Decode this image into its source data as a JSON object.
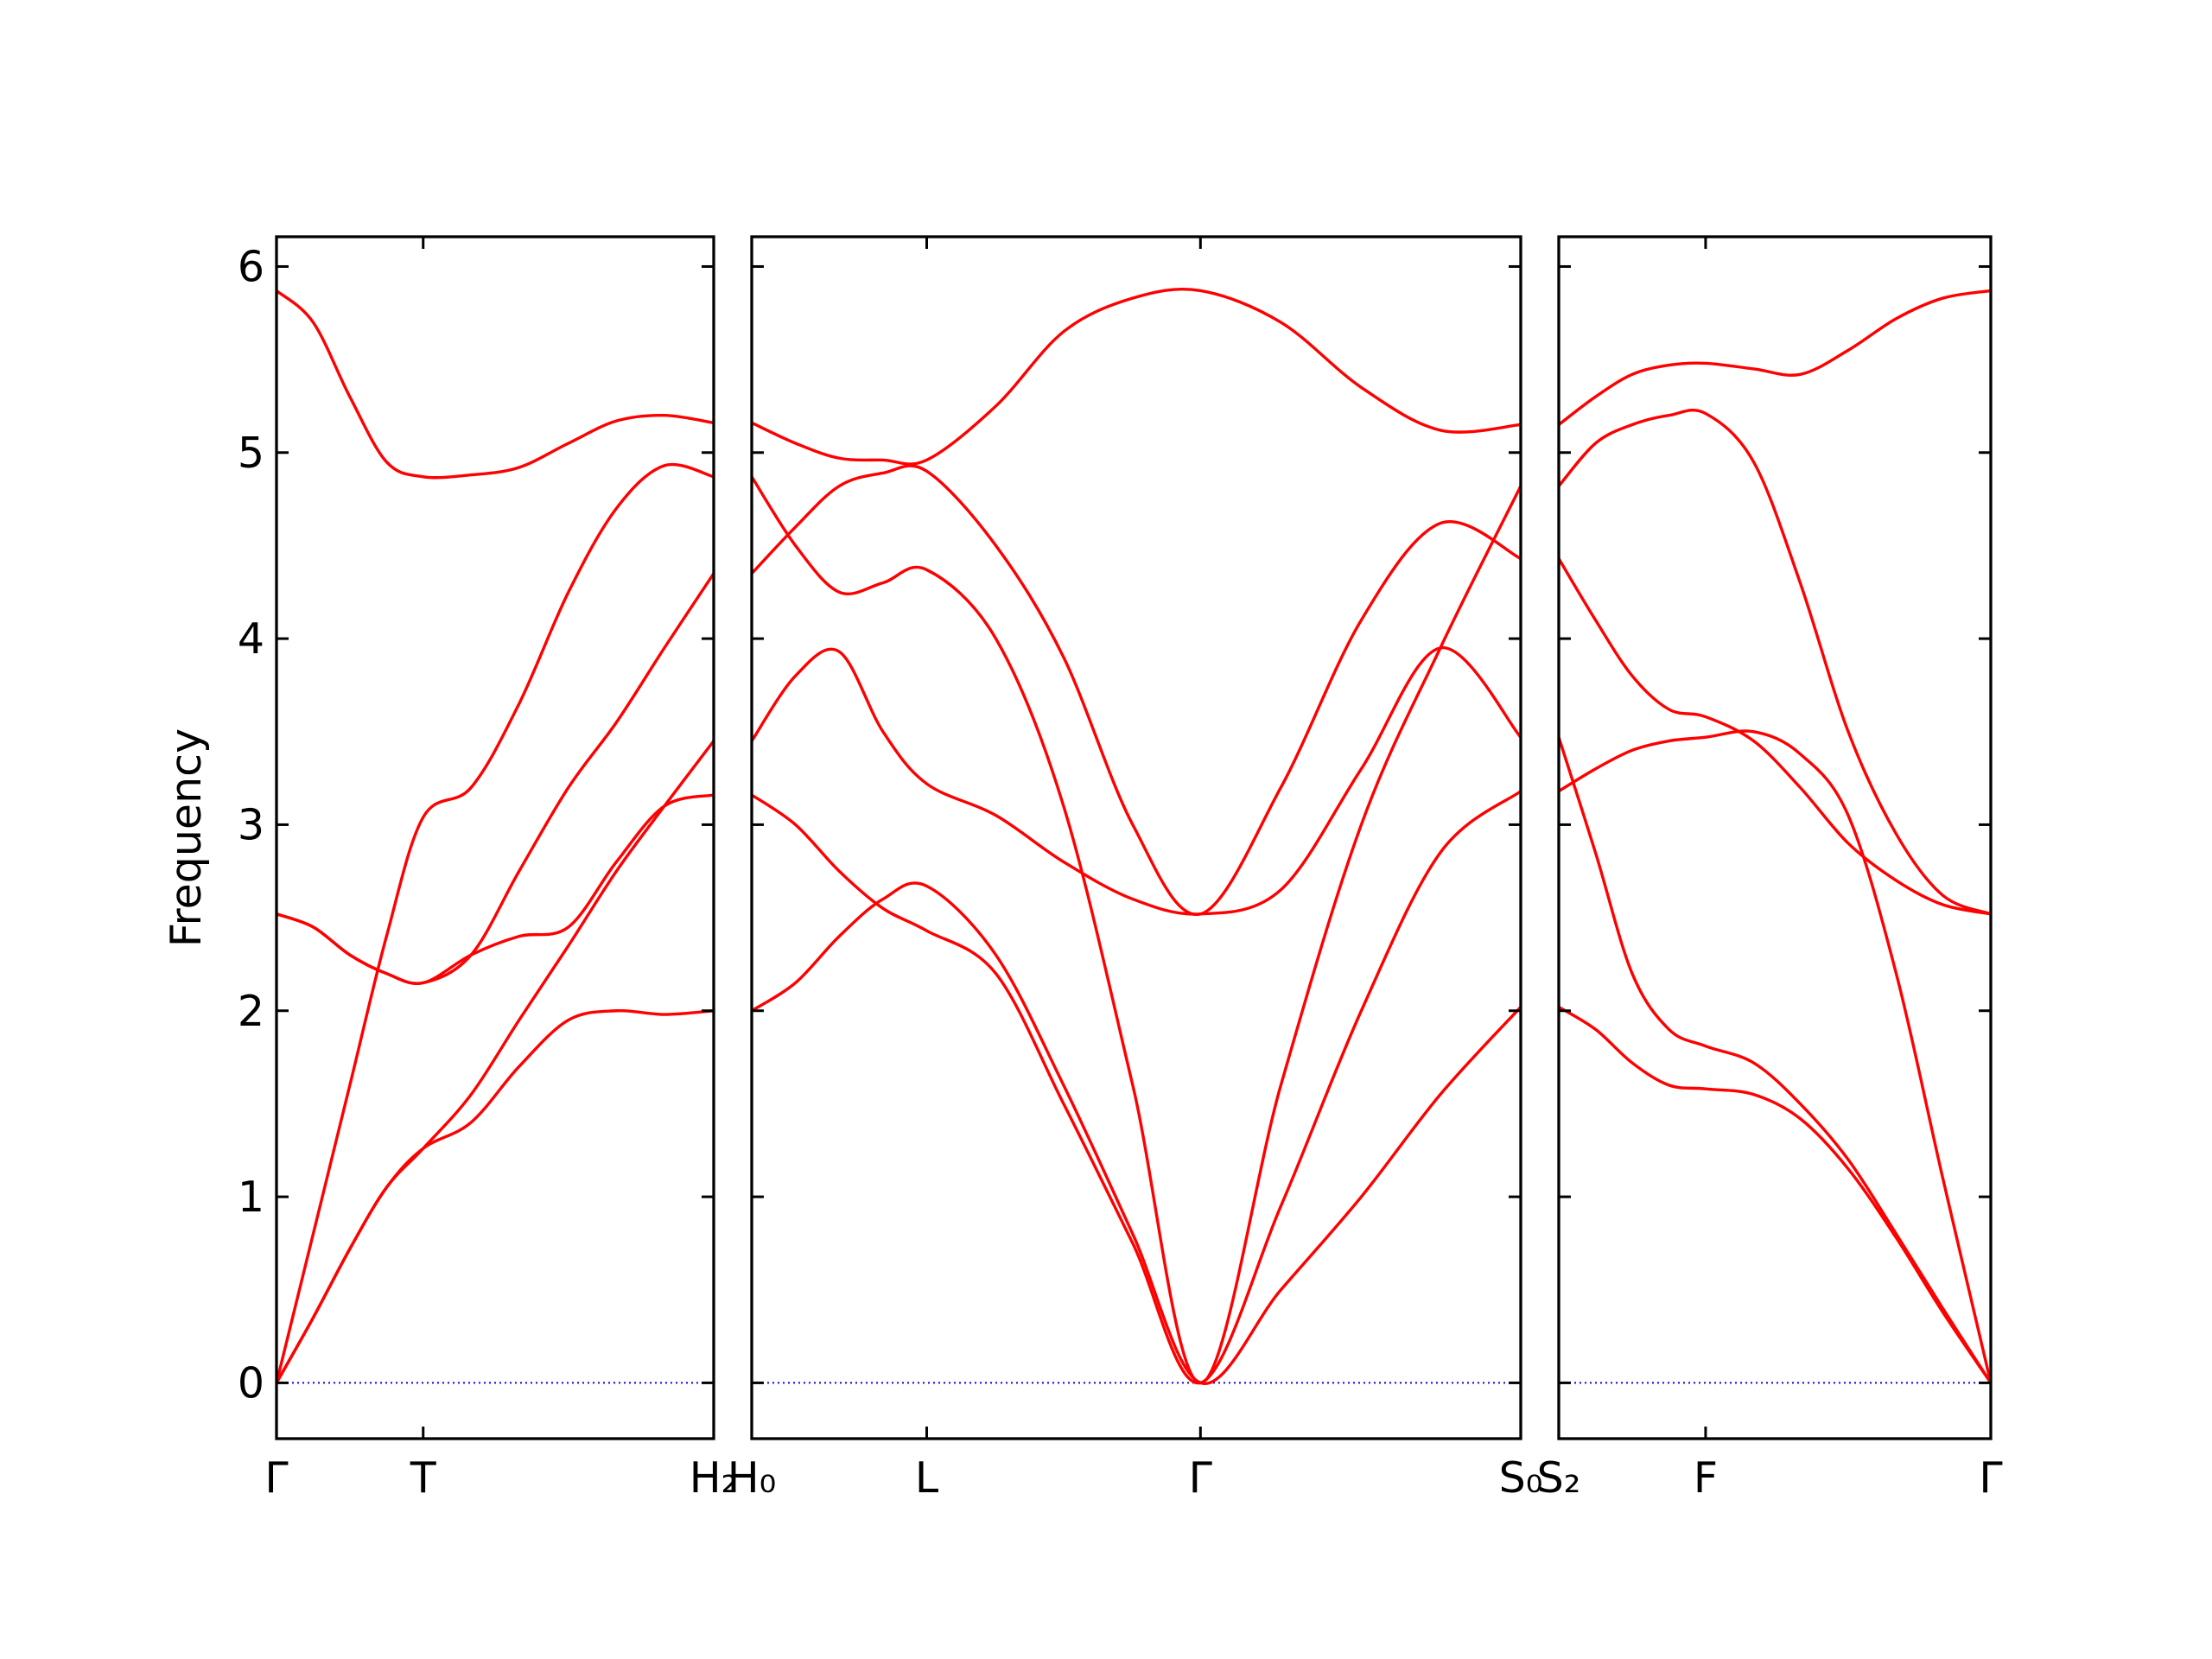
{
  "chart_data": [
    {
      "type": "line",
      "ylabel": "Frequency",
      "ytick_labels": true,
      "xlim": [
        0,
        3.1
      ],
      "xticks": [
        {
          "value": 0,
          "label": "Γ"
        },
        {
          "value": 1.04,
          "label": "T"
        },
        {
          "value": 3.1,
          "label": "H₂"
        }
      ],
      "ylim": [
        -0.3,
        6.16
      ],
      "yticks": [
        0,
        1,
        2,
        3,
        4,
        5,
        6
      ],
      "reference_line": {
        "y": 0,
        "color": "#0000ff",
        "style": "dotted"
      },
      "x": [
        0,
        0.26,
        0.52,
        0.78,
        1.04,
        1.38,
        1.72,
        2.07,
        2.41,
        2.75,
        3.1
      ],
      "series": [
        {
          "color": "#ff0000",
          "values": [
            0,
            0.35,
            0.72,
            1.05,
            1.26,
            1.4,
            1.7,
            1.95,
            2.0,
            1.98,
            2.0
          ]
        },
        {
          "color": "#ff0000",
          "values": [
            0,
            0.35,
            0.72,
            1.05,
            1.26,
            1.55,
            1.95,
            2.35,
            2.75,
            3.1,
            3.45
          ]
        },
        {
          "color": "#ff0000",
          "values": [
            2.52,
            2.45,
            2.3,
            2.2,
            2.15,
            2.3,
            2.75,
            3.2,
            3.55,
            3.95,
            4.35
          ]
        },
        {
          "color": "#ff0000",
          "values": [
            2.52,
            2.45,
            2.3,
            2.2,
            2.15,
            2.3,
            2.4,
            2.45,
            2.8,
            3.1,
            3.16
          ]
        },
        {
          "color": "#ff0000",
          "values": [
            0,
            0.8,
            1.6,
            2.4,
            3.04,
            3.2,
            3.65,
            4.25,
            4.7,
            4.93,
            4.87
          ]
        },
        {
          "color": "#ff0000",
          "values": [
            5.87,
            5.7,
            5.3,
            4.95,
            4.87,
            4.88,
            4.92,
            5.05,
            5.17,
            5.2,
            5.16
          ]
        }
      ]
    },
    {
      "type": "line",
      "ytick_labels": false,
      "xlim": [
        0,
        5.45
      ],
      "xticks": [
        {
          "value": 0,
          "label": "H₀"
        },
        {
          "value": 1.24,
          "label": "L"
        },
        {
          "value": 3.18,
          "label": "Γ"
        },
        {
          "value": 5.45,
          "label": "S₀"
        }
      ],
      "ylim": [
        -0.3,
        6.16
      ],
      "yticks": [
        0,
        1,
        2,
        3,
        4,
        5,
        6
      ],
      "reference_line": {
        "y": 0,
        "color": "#0000ff",
        "style": "dotted"
      },
      "x": [
        0,
        0.31,
        0.62,
        0.93,
        1.24,
        1.73,
        2.21,
        2.7,
        3.18,
        3.75,
        4.32,
        4.88,
        5.45
      ],
      "series": [
        {
          "color": "#ff0000",
          "values": [
            2.0,
            2.15,
            2.4,
            2.6,
            2.67,
            2.3,
            1.6,
            0.8,
            0,
            0.5,
            1.0,
            1.55,
            2.02
          ]
        },
        {
          "color": "#ff0000",
          "values": [
            3.16,
            3.0,
            2.75,
            2.55,
            2.43,
            2.2,
            1.5,
            0.75,
            0,
            0.95,
            2.0,
            2.85,
            3.18
          ]
        },
        {
          "color": "#ff0000",
          "values": [
            3.45,
            3.8,
            3.93,
            3.5,
            3.22,
            3.05,
            2.8,
            2.6,
            2.52,
            2.65,
            3.3,
            3.95,
            3.47
          ]
        },
        {
          "color": "#ff0000",
          "values": [
            4.35,
            4.6,
            4.82,
            4.89,
            4.9,
            4.5,
            3.9,
            3.0,
            2.52,
            3.2,
            4.1,
            4.62,
            4.43
          ]
        },
        {
          "color": "#ff0000",
          "values": [
            4.87,
            4.5,
            4.25,
            4.3,
            4.37,
            4.0,
            3.1,
            1.6,
            0,
            1.6,
            3.0,
            3.95,
            4.82
          ]
        },
        {
          "color": "#ff0000",
          "values": [
            5.16,
            5.05,
            4.97,
            4.96,
            4.96,
            5.25,
            5.65,
            5.83,
            5.87,
            5.7,
            5.35,
            5.12,
            5.15
          ]
        }
      ]
    },
    {
      "type": "line",
      "ytick_labels": false,
      "xlim": [
        0,
        3.06
      ],
      "xticks": [
        {
          "value": 0,
          "label": "S₂"
        },
        {
          "value": 1.04,
          "label": "F"
        },
        {
          "value": 3.06,
          "label": "Γ"
        }
      ],
      "ylim": [
        -0.3,
        6.16
      ],
      "yticks": [
        0,
        1,
        2,
        3,
        4,
        5,
        6
      ],
      "reference_line": {
        "y": 0,
        "color": "#0000ff",
        "style": "dotted"
      },
      "x": [
        0,
        0.26,
        0.52,
        0.78,
        1.04,
        1.38,
        1.71,
        2.05,
        2.39,
        2.72,
        3.06
      ],
      "series": [
        {
          "color": "#ff0000",
          "values": [
            2.02,
            1.9,
            1.72,
            1.6,
            1.58,
            1.55,
            1.42,
            1.15,
            0.78,
            0.38,
            0
          ]
        },
        {
          "color": "#ff0000",
          "values": [
            3.47,
            2.85,
            2.2,
            1.9,
            1.81,
            1.72,
            1.5,
            1.2,
            0.8,
            0.4,
            0
          ]
        },
        {
          "color": "#ff0000",
          "values": [
            3.18,
            3.3,
            3.4,
            3.45,
            3.47,
            3.5,
            3.38,
            3.05,
            2.2,
            1.1,
            0
          ]
        },
        {
          "color": "#ff0000",
          "values": [
            4.43,
            4.1,
            3.8,
            3.62,
            3.58,
            3.45,
            3.2,
            2.9,
            2.7,
            2.57,
            2.52
          ]
        },
        {
          "color": "#ff0000",
          "values": [
            4.82,
            5.05,
            5.15,
            5.2,
            5.21,
            4.95,
            4.3,
            3.5,
            2.95,
            2.62,
            2.52
          ]
        },
        {
          "color": "#ff0000",
          "values": [
            5.15,
            5.3,
            5.42,
            5.47,
            5.48,
            5.45,
            5.42,
            5.55,
            5.72,
            5.83,
            5.87
          ]
        }
      ]
    }
  ]
}
